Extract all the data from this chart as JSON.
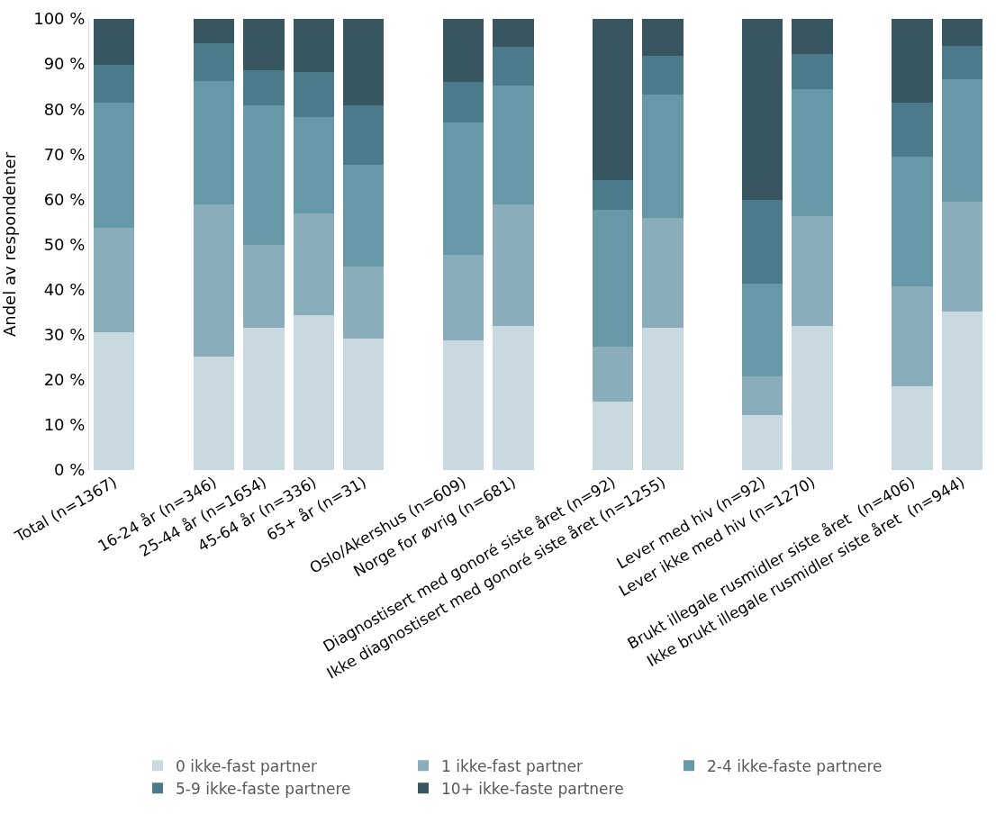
{
  "chart_data": {
    "type": "bar",
    "stacked": true,
    "ylabel": "Andel av respondenter",
    "categories": [
      "Total (n=1367)",
      null,
      "16-24 år (n=346)",
      "25-44 år (n=1654)",
      "45-64 år (n=336)",
      "65+ år (n=31)",
      null,
      "Oslo/Akershus (n=609)",
      "Norge for øvrig (n=681)",
      null,
      "Diagnostisert med gonoré siste året (n=92)",
      "Ikke diagnostisert med gonoré siste året (n=1255)",
      null,
      "Lever med hiv (n=92)",
      "Lever ikke med hiv (n=1270)",
      null,
      "Brukt illegale rusmidler siste året  (n=406)",
      "Ikke brukt illegale rusmidler siste året  (n=944)"
    ],
    "series": [
      {
        "name": "0 ikke-fast partner",
        "color": "#c8dae0",
        "values": [
          30.5,
          null,
          25.1,
          31.5,
          34.3,
          29.1,
          null,
          28.7,
          31.9,
          null,
          15.2,
          31.5,
          null,
          12.1,
          31.9,
          null,
          18.6,
          35.2
        ]
      },
      {
        "name": "1 ikke-fast partner",
        "color": "#89adbb",
        "values": [
          23.1,
          null,
          33.7,
          18.4,
          22.5,
          16.0,
          null,
          19.0,
          26.9,
          null,
          12.1,
          24.3,
          null,
          8.7,
          24.3,
          null,
          22.2,
          24.2
        ]
      },
      {
        "name": "2-4 ikke-faste partnere",
        "color": "#6698a8",
        "values": [
          27.8,
          null,
          27.5,
          30.9,
          21.4,
          22.6,
          null,
          29.3,
          26.5,
          null,
          30.3,
          27.4,
          null,
          20.6,
          28.2,
          null,
          28.7,
          27.3
        ]
      },
      {
        "name": "5-9 ikke-faste partnere",
        "color": "#4b7a8a",
        "values": [
          8.5,
          null,
          8.3,
          7.9,
          10.1,
          13.1,
          null,
          9.1,
          8.6,
          null,
          6.6,
          8.7,
          null,
          18.4,
          7.9,
          null,
          11.9,
          7.4
        ]
      },
      {
        "name": "10+ ikke-faste partnere",
        "color": "#375660",
        "values": [
          10.1,
          null,
          5.4,
          11.3,
          11.7,
          19.2,
          null,
          13.9,
          6.1,
          null,
          35.8,
          8.1,
          null,
          40.2,
          7.7,
          null,
          18.6,
          5.9
        ]
      }
    ],
    "ylim": [
      0,
      100
    ],
    "yticks": [
      {
        "value": 0,
        "label": "0 %"
      },
      {
        "value": 10,
        "label": "10 %"
      },
      {
        "value": 20,
        "label": "20 %"
      },
      {
        "value": 30,
        "label": "30 %"
      },
      {
        "value": 40,
        "label": "40 %"
      },
      {
        "value": 50,
        "label": "50 %"
      },
      {
        "value": 60,
        "label": "60 %"
      },
      {
        "value": 70,
        "label": "70 %"
      },
      {
        "value": 80,
        "label": "80 %"
      },
      {
        "value": 90,
        "label": "90 %"
      },
      {
        "value": 100,
        "label": "100 %"
      }
    ],
    "legend": "bottom"
  }
}
